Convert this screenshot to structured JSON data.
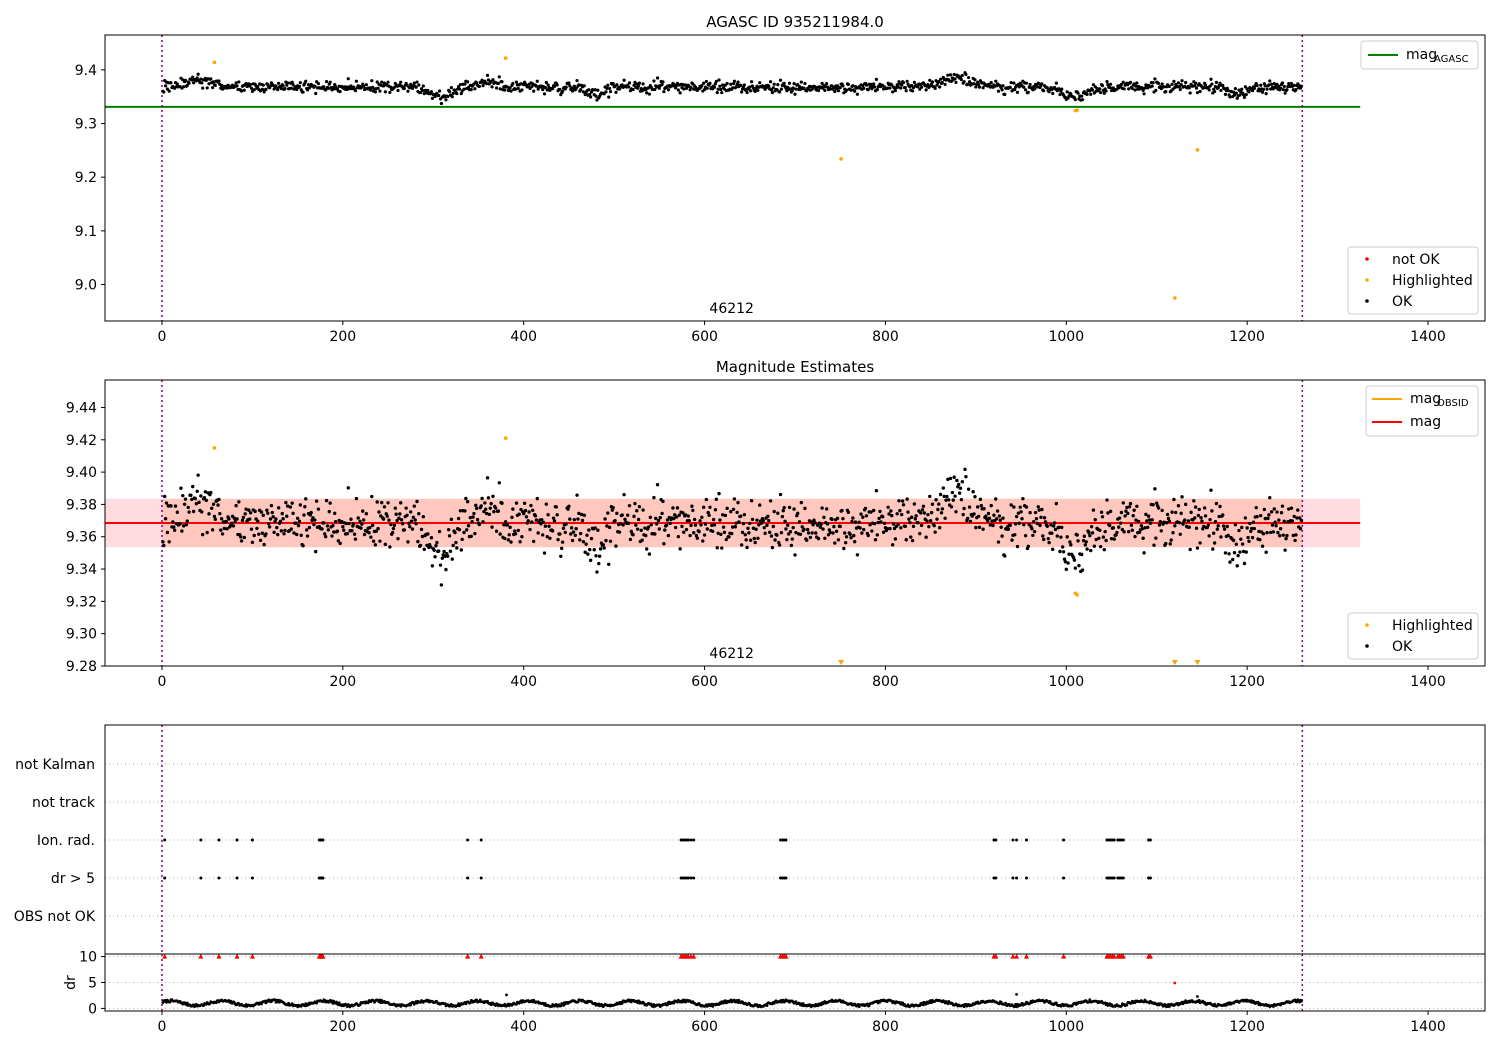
{
  "colors": {
    "ok": "#000000",
    "highlighted": "#ffa500",
    "not_ok": "#ff0000",
    "agasc_line": "#008000",
    "mag_line": "#ff0000",
    "mag_obsid_line": "#ffa500",
    "band_outer": "#ffc0cb",
    "band_inner": "#ffa07a",
    "epoch_line": "#800080",
    "grid": "#b0b0b0"
  },
  "chart_data": [
    {
      "type": "scatter",
      "title": "AGASC ID 935211984.0",
      "xlim": [
        -63,
        1463
      ],
      "ylim": [
        8.932,
        9.465
      ],
      "xticks": [
        0,
        200,
        400,
        600,
        800,
        1000,
        1200,
        1400
      ],
      "yticks": [
        9.0,
        9.1,
        9.2,
        9.3,
        9.4
      ],
      "ytick_labels": [
        "9.0",
        "9.1",
        "9.2",
        "9.3",
        "9.4"
      ],
      "epoch_lines_x": [
        0,
        1261
      ],
      "obsid_label": "46212",
      "obsid_label_x": 630,
      "mag_agasc": 9.331,
      "mag_agasc_x_range": [
        -63,
        1325
      ],
      "legend_lines": [
        {
          "name_main": "mag",
          "name_sub": "AGASC",
          "color": "#008000"
        }
      ],
      "legend_points": [
        {
          "name": "not OK",
          "color": "#ff0000"
        },
        {
          "name": "Highlighted",
          "color": "#ffa500"
        },
        {
          "name": "OK",
          "color": "#000000"
        }
      ],
      "ok_series": {
        "n": 1260,
        "mean": 9.368,
        "noise": 0.011
      },
      "highlighted_points": [
        [
          58,
          9.414
        ],
        [
          380,
          9.422
        ],
        [
          751,
          9.234
        ],
        [
          1010,
          9.324
        ],
        [
          1012,
          9.325
        ],
        [
          1120,
          8.975
        ],
        [
          1145,
          9.251
        ]
      ]
    },
    {
      "type": "scatter",
      "title": "Magnitude Estimates",
      "xlim": [
        -63,
        1463
      ],
      "ylim": [
        9.28,
        9.457
      ],
      "xticks": [
        0,
        200,
        400,
        600,
        800,
        1000,
        1200,
        1400
      ],
      "yticks": [
        9.28,
        9.3,
        9.32,
        9.34,
        9.36,
        9.38,
        9.4,
        9.42,
        9.44
      ],
      "ytick_labels": [
        "9.28",
        "9.30",
        "9.32",
        "9.34",
        "9.36",
        "9.38",
        "9.40",
        "9.42",
        "9.44"
      ],
      "epoch_lines_x": [
        0,
        1261
      ],
      "obsid_label": "46212",
      "obsid_label_x": 630,
      "mag": 9.3685,
      "band_outer": [
        9.3535,
        9.3835
      ],
      "band_inner": [
        9.3535,
        9.3835
      ],
      "band_x_range": [
        -63,
        1325
      ],
      "mag_obsid_x_range": [
        0,
        1261
      ],
      "legend_lines": [
        {
          "name_main": "mag",
          "name_sub": "OBSID",
          "color": "#ffa500"
        },
        {
          "name_main": "mag",
          "name_sub": "",
          "color": "#ff0000"
        }
      ],
      "legend_points": [
        {
          "name": "Highlighted",
          "color": "#ffa500"
        },
        {
          "name": "OK",
          "color": "#000000"
        }
      ],
      "ok_series": {
        "n": 1260,
        "mean": 9.368,
        "noise": 0.011
      },
      "highlighted_points": [
        [
          58,
          9.415
        ],
        [
          380,
          9.421
        ],
        [
          1010,
          9.325
        ],
        [
          1012,
          9.324
        ]
      ],
      "below_range_markers_x": [
        751,
        1120,
        1145
      ]
    },
    {
      "type": "scatter",
      "title": "",
      "xlim": [
        -63,
        1463
      ],
      "flag_rows": [
        "not Kalman",
        "not track",
        "Ion. rad.",
        "dr > 5",
        "OBS not OK"
      ],
      "epoch_lines_x": [
        0,
        1261
      ],
      "flagged_x": [
        3,
        43,
        63,
        83,
        100,
        174,
        175,
        176,
        177,
        178,
        338,
        353,
        574,
        576,
        578,
        580,
        582,
        585,
        588,
        684,
        686,
        688,
        690,
        920,
        922,
        941,
        945,
        956,
        997,
        1045,
        1047,
        1049,
        1051,
        1053,
        1057,
        1059,
        1061,
        1063,
        1091,
        1093
      ]
    },
    {
      "type": "scatter",
      "title": "",
      "xlim": [
        -63,
        1463
      ],
      "ylim": [
        -0.5,
        10.5
      ],
      "ylabel": "dr",
      "xticks": [
        0,
        200,
        400,
        600,
        800,
        1000,
        1200,
        1400
      ],
      "yticks": [
        0,
        5,
        10
      ],
      "ytick_labels": [
        "0",
        "5",
        "10"
      ],
      "epoch_lines_x": [
        0,
        1261
      ],
      "dr_series": {
        "n": 1260,
        "mean": 1.0,
        "amp": 0.5
      },
      "dr_extra_points": [
        [
          381,
          2.6
        ],
        [
          945,
          2.7
        ],
        [
          1120,
          4.9
        ],
        [
          1145,
          2.3
        ]
      ],
      "capped_markers_x": [
        3,
        43,
        63,
        83,
        100,
        174,
        175,
        176,
        177,
        178,
        338,
        353,
        574,
        576,
        578,
        580,
        582,
        585,
        588,
        684,
        686,
        688,
        690,
        920,
        922,
        941,
        945,
        956,
        997,
        1045,
        1047,
        1049,
        1051,
        1053,
        1057,
        1059,
        1061,
        1063,
        1091,
        1093
      ]
    }
  ]
}
